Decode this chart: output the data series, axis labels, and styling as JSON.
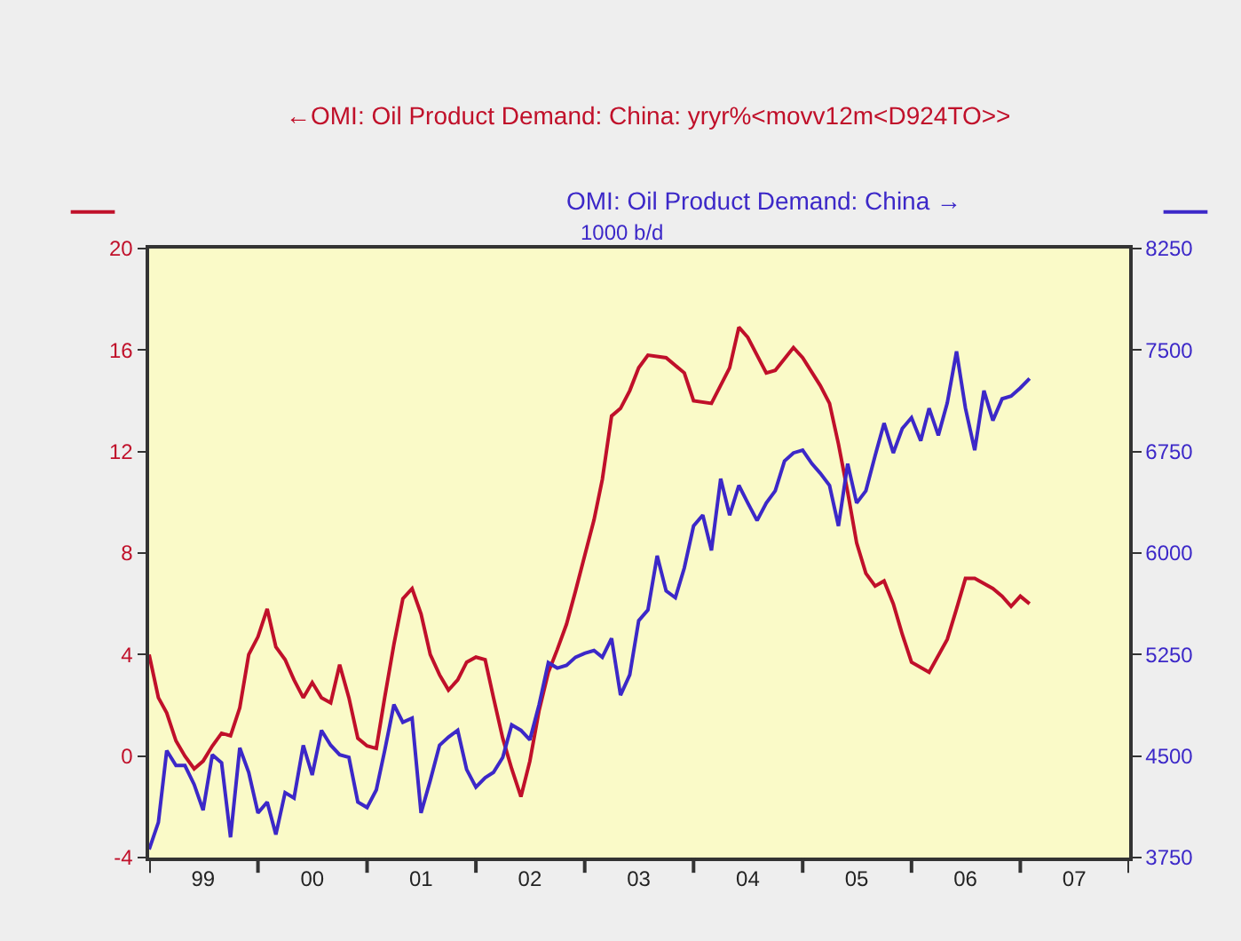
{
  "chart_data": {
    "type": "line",
    "annotations": [
      "1000 b/d"
    ],
    "legend": "top",
    "grid": false,
    "line_style": "solid",
    "marker": "none",
    "xlim": [
      "1999-01",
      "2008-01"
    ],
    "xticks": [
      {
        "value": "1999-07",
        "label": "99"
      },
      {
        "value": "2000-07",
        "label": "00"
      },
      {
        "value": "2001-07",
        "label": "01"
      },
      {
        "value": "2002-07",
        "label": "02"
      },
      {
        "value": "2003-07",
        "label": "03"
      },
      {
        "value": "2004-07",
        "label": "04"
      },
      {
        "value": "2005-07",
        "label": "05"
      },
      {
        "value": "2006-07",
        "label": "06"
      },
      {
        "value": "2007-07",
        "label": "07"
      },
      {
        "value": "1999-01",
        "label": null
      },
      {
        "value": "2000-01",
        "label": null
      },
      {
        "value": "2001-01",
        "label": null
      },
      {
        "value": "2002-01",
        "label": null
      },
      {
        "value": "2003-01",
        "label": null
      },
      {
        "value": "2004-01",
        "label": null
      },
      {
        "value": "2005-01",
        "label": null
      },
      {
        "value": "2006-01",
        "label": null
      },
      {
        "value": "2007-01",
        "label": null
      },
      {
        "value": "2008-01",
        "label": null
      }
    ],
    "ylim": [
      -4,
      20
    ],
    "yticks": [
      -4,
      0,
      4,
      8,
      12,
      16,
      20
    ],
    "y2lim": [
      3750,
      8250
    ],
    "y2ticks": [
      3750,
      4500,
      5250,
      6000,
      6750,
      7500,
      8250
    ],
    "series": [
      {
        "name": "←OMI: Oil Product Demand: China: yryr%<movv12m<D924TO>>",
        "color": "#c0102a",
        "x": [
          "1999-01",
          "1999-02",
          "1999-03",
          "1999-04",
          "1999-05",
          "1999-06",
          "1999-07",
          "1999-08",
          "1999-09",
          "1999-10",
          "1999-11",
          "1999-12",
          "2000-01",
          "2000-02",
          "2000-03",
          "2000-04",
          "2000-05",
          "2000-06",
          "2000-07",
          "2000-08",
          "2000-09",
          "2000-10",
          "2000-11",
          "2000-12",
          "2001-01",
          "2001-02",
          "2001-03",
          "2001-04",
          "2001-05",
          "2001-06",
          "2001-07",
          "2001-08",
          "2001-09",
          "2001-10",
          "2001-11",
          "2001-12",
          "2002-01",
          "2002-02",
          "2002-03",
          "2002-04",
          "2002-05",
          "2002-06",
          "2002-07",
          "2002-08",
          "2002-09",
          "2002-10",
          "2002-11",
          "2002-12",
          "2003-01",
          "2003-02",
          "2003-03",
          "2003-04",
          "2003-05",
          "2003-06",
          "2003-07",
          "2003-08",
          "2003-10",
          "2003-12",
          "2004-01",
          "2004-03",
          "2004-05",
          "2004-06",
          "2004-07",
          "2004-09",
          "2004-10",
          "2004-12",
          "2005-01",
          "2005-03",
          "2005-04",
          "2005-05",
          "2005-06",
          "2005-07",
          "2005-08",
          "2005-09",
          "2005-10",
          "2005-11",
          "2005-12",
          "2006-01",
          "2006-03",
          "2006-05",
          "2006-06",
          "2006-07",
          "2006-08",
          "2006-10",
          "2006-11",
          "2006-12",
          "2007-01",
          "2007-02"
        ],
        "values": [
          4.0,
          2.3,
          1.7,
          0.6,
          0.0,
          -0.5,
          -0.2,
          0.4,
          0.9,
          0.8,
          1.9,
          4.0,
          4.7,
          5.8,
          4.3,
          3.8,
          3.0,
          2.3,
          2.9,
          2.3,
          2.1,
          3.6,
          2.3,
          0.7,
          0.4,
          0.3,
          2.3,
          4.4,
          6.2,
          6.6,
          5.6,
          4.0,
          3.2,
          2.6,
          3.0,
          3.7,
          3.9,
          3.8,
          2.3,
          0.7,
          -0.5,
          -1.6,
          -0.2,
          1.8,
          3.3,
          4.2,
          5.2,
          6.5,
          7.9,
          9.3,
          10.9,
          13.4,
          13.7,
          14.4,
          15.3,
          15.8,
          15.7,
          15.1,
          14.0,
          13.9,
          15.3,
          16.9,
          16.5,
          15.1,
          15.2,
          16.1,
          15.7,
          14.6,
          13.9,
          12.3,
          10.4,
          8.4,
          7.2,
          6.7,
          6.9,
          6.0,
          4.8,
          3.7,
          3.3,
          4.6,
          5.8,
          7.0,
          7.0,
          6.6,
          6.3,
          5.9,
          6.3,
          6.0
        ]
      },
      {
        "name": "OMI: Oil Product Demand: China →",
        "color": "#3c28c8",
        "axis": "y2",
        "x": [
          "1999-01",
          "1999-02",
          "1999-03",
          "1999-04",
          "1999-05",
          "1999-06",
          "1999-07",
          "1999-08",
          "1999-09",
          "1999-10",
          "1999-11",
          "1999-12",
          "2000-01",
          "2000-02",
          "2000-03",
          "2000-04",
          "2000-05",
          "2000-06",
          "2000-07",
          "2000-08",
          "2000-09",
          "2000-10",
          "2000-11",
          "2000-12",
          "2001-01",
          "2001-02",
          "2001-03",
          "2001-04",
          "2001-05",
          "2001-06",
          "2001-07",
          "2001-08",
          "2001-09",
          "2001-10",
          "2001-11",
          "2001-12",
          "2002-01",
          "2002-02",
          "2002-03",
          "2002-04",
          "2002-05",
          "2002-06",
          "2002-07",
          "2002-08",
          "2002-09",
          "2002-10",
          "2002-11",
          "2002-12",
          "2003-01",
          "2003-02",
          "2003-03",
          "2003-04",
          "2003-05",
          "2003-06",
          "2003-07",
          "2003-08",
          "2003-09",
          "2003-10",
          "2003-11",
          "2003-12",
          "2004-01",
          "2004-02",
          "2004-03",
          "2004-04",
          "2004-05",
          "2004-06",
          "2004-07",
          "2004-08",
          "2004-09",
          "2004-10",
          "2004-11",
          "2004-12",
          "2005-01",
          "2005-02",
          "2005-03",
          "2005-04",
          "2005-05",
          "2005-06",
          "2005-07",
          "2005-08",
          "2005-09",
          "2005-10",
          "2005-11",
          "2005-12",
          "2006-01",
          "2006-02",
          "2006-03",
          "2006-04",
          "2006-05",
          "2006-06",
          "2006-07",
          "2006-08",
          "2006-09",
          "2006-10",
          "2006-11",
          "2006-12",
          "2007-01",
          "2007-02"
        ],
        "values": [
          3810,
          4010,
          4540,
          4430,
          4430,
          4290,
          4100,
          4510,
          4450,
          3900,
          4560,
          4380,
          4080,
          4160,
          3920,
          4230,
          4190,
          4580,
          4360,
          4690,
          4580,
          4510,
          4490,
          4160,
          4120,
          4250,
          4540,
          4880,
          4750,
          4780,
          4080,
          4320,
          4580,
          4640,
          4690,
          4400,
          4270,
          4340,
          4380,
          4490,
          4730,
          4690,
          4620,
          4880,
          5190,
          5150,
          5170,
          5230,
          5260,
          5280,
          5230,
          5370,
          4950,
          5100,
          5500,
          5580,
          5980,
          5720,
          5670,
          5890,
          6200,
          6280,
          6020,
          6550,
          6280,
          6500,
          6370,
          6240,
          6370,
          6460,
          6680,
          6740,
          6760,
          6660,
          6590,
          6500,
          6200,
          6660,
          6370,
          6460,
          6720,
          6960,
          6740,
          6920,
          7000,
          6830,
          7070,
          6870,
          7110,
          7490,
          7070,
          6760,
          7200,
          6980,
          7140,
          7160,
          7220,
          7290
        ]
      }
    ]
  }
}
